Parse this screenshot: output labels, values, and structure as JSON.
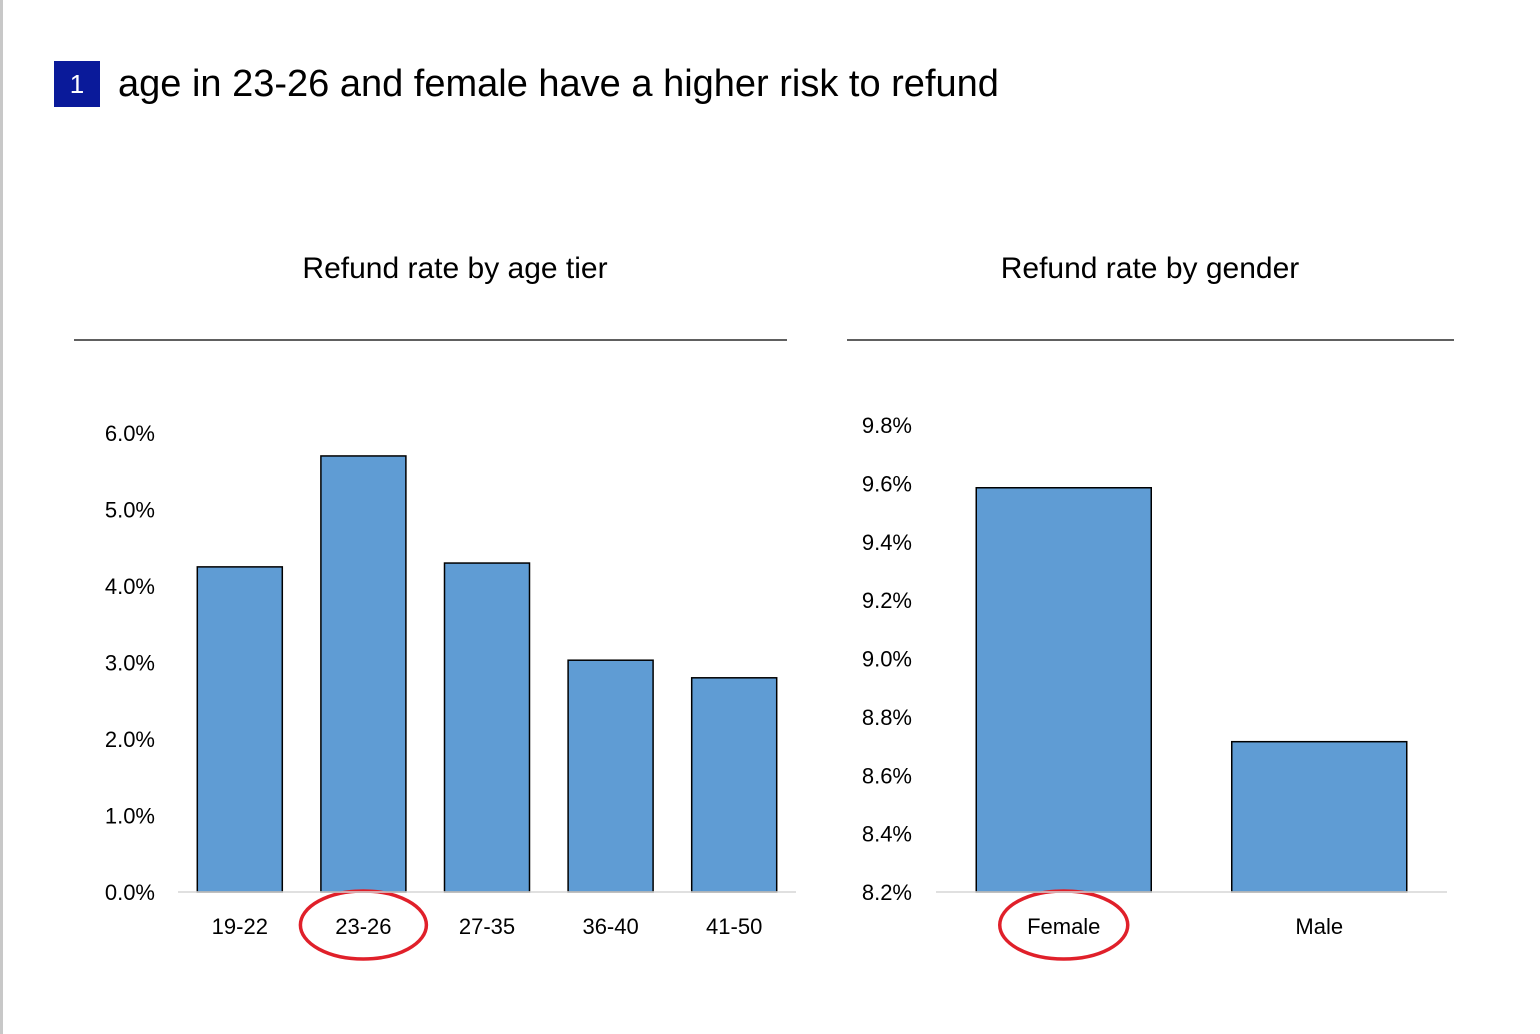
{
  "header": {
    "badge": "1",
    "headline": "age in 23-26 and female have a higher risk to refund"
  },
  "colors": {
    "bar_fill": "#5f9cd4",
    "bar_stroke": "#000000",
    "badge_bg": "#0a1a9a",
    "highlight_circle": "#e0202a"
  },
  "chart_data": [
    {
      "type": "bar",
      "title": "Refund rate by age tier",
      "categories": [
        "19-22",
        "23-26",
        "27-35",
        "36-40",
        "41-50"
      ],
      "values": [
        4.25,
        5.7,
        4.3,
        3.03,
        2.8
      ],
      "unit": "%",
      "ylim": [
        0,
        6
      ],
      "yticks": [
        "0.0%",
        "1.0%",
        "2.0%",
        "3.0%",
        "4.0%",
        "5.0%",
        "6.0%"
      ],
      "ytick_values": [
        0,
        1,
        2,
        3,
        4,
        5,
        6
      ],
      "grid": false,
      "highlighted_category": "23-26"
    },
    {
      "type": "bar",
      "title": "Refund rate  by gender",
      "categories": [
        "Female",
        "Male"
      ],
      "values": [
        9.585,
        8.715
      ],
      "unit": "%",
      "ylim": [
        8.2,
        9.8
      ],
      "yticks": [
        "8.2%",
        "8.4%",
        "8.6%",
        "8.8%",
        "9.0%",
        "9.2%",
        "9.4%",
        "9.6%",
        "9.8%"
      ],
      "ytick_values": [
        8.2,
        8.4,
        8.6,
        8.8,
        9.0,
        9.2,
        9.4,
        9.6,
        9.8
      ],
      "grid": false,
      "highlighted_category": "Female"
    }
  ]
}
